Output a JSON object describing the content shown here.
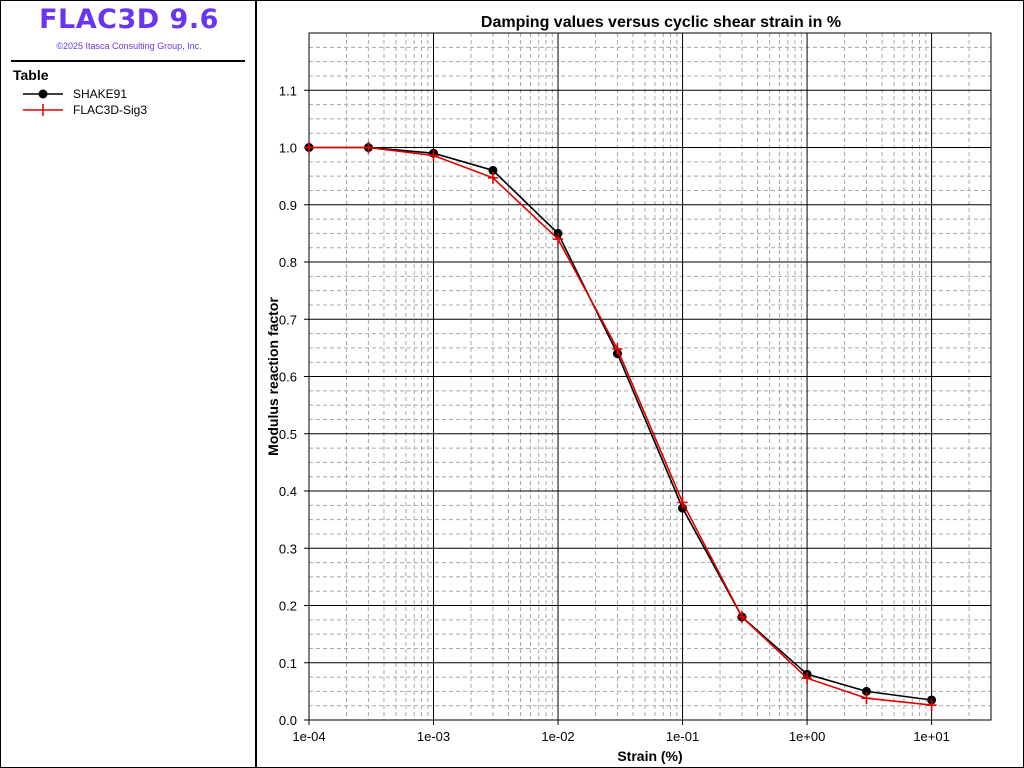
{
  "app": {
    "title": "FLAC3D 9.6",
    "copyright": "©2025 Itasca Consulting Group, Inc."
  },
  "legend": {
    "heading": "Table",
    "items": [
      {
        "label": "SHAKE91",
        "color": "#000000",
        "marker": "circle"
      },
      {
        "label": "FLAC3D-Sig3",
        "color": "#e00000",
        "marker": "plus"
      }
    ]
  },
  "chart_data": {
    "type": "line",
    "title": "Damping values versus cyclic shear strain in %",
    "xlabel": "Strain (%)",
    "ylabel": "Modulus reaction factor",
    "xscale": "log",
    "xlim": [
      0.0001,
      30
    ],
    "ylim": [
      0,
      1.2
    ],
    "grid": true,
    "x_ticks": [
      {
        "value": 0.0001,
        "label": "1e-04"
      },
      {
        "value": 0.001,
        "label": "1e-03"
      },
      {
        "value": 0.01,
        "label": "1e-02"
      },
      {
        "value": 0.1,
        "label": "1e-01"
      },
      {
        "value": 1,
        "label": "1e+00"
      },
      {
        "value": 10,
        "label": "1e+01"
      }
    ],
    "y_ticks": [
      {
        "value": 0.0,
        "label": "0.0"
      },
      {
        "value": 0.1,
        "label": "0.1"
      },
      {
        "value": 0.2,
        "label": "0.2"
      },
      {
        "value": 0.3,
        "label": "0.3"
      },
      {
        "value": 0.4,
        "label": "0.4"
      },
      {
        "value": 0.5,
        "label": "0.5"
      },
      {
        "value": 0.6,
        "label": "0.6"
      },
      {
        "value": 0.7,
        "label": "0.7"
      },
      {
        "value": 0.8,
        "label": "0.8"
      },
      {
        "value": 0.9,
        "label": "0.9"
      },
      {
        "value": 1.0,
        "label": "1.0"
      },
      {
        "value": 1.1,
        "label": "1.1"
      }
    ],
    "series": [
      {
        "name": "SHAKE91",
        "color": "#000000",
        "marker": "circle",
        "x": [
          0.0001,
          0.0003,
          0.001,
          0.003,
          0.01,
          0.03,
          0.1,
          0.3,
          1,
          3,
          10
        ],
        "y": [
          1.0,
          1.0,
          0.99,
          0.96,
          0.85,
          0.64,
          0.37,
          0.18,
          0.08,
          0.05,
          0.035
        ]
      },
      {
        "name": "FLAC3D-Sig3",
        "color": "#e00000",
        "marker": "plus",
        "x": [
          0.0001,
          0.0003,
          0.001,
          0.003,
          0.01,
          0.03,
          0.1,
          0.3,
          1,
          3,
          10
        ],
        "y": [
          1.0,
          1.0,
          0.986,
          0.947,
          0.84,
          0.648,
          0.38,
          0.18,
          0.073,
          0.038,
          0.026
        ]
      }
    ]
  }
}
